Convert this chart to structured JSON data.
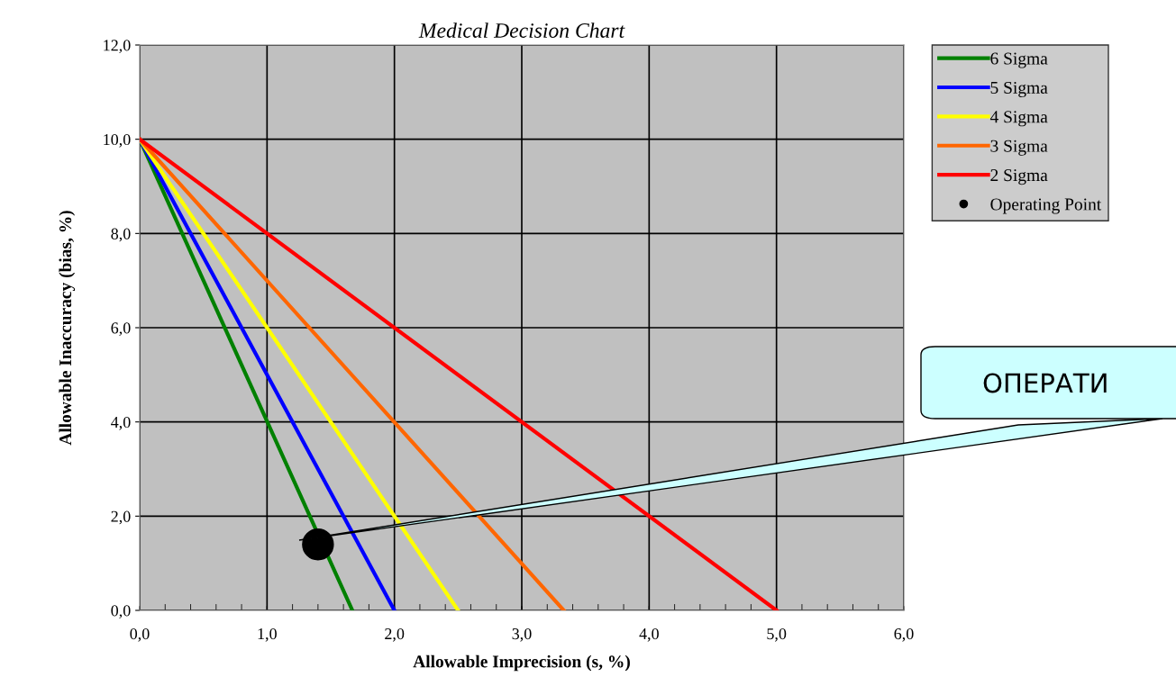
{
  "chart_data": {
    "type": "line",
    "title": "Medical Decision Chart",
    "xlabel": "Allowable Imprecision (s, %)",
    "ylabel": "Allowable Inaccuracy (bias, %)",
    "series": [
      {
        "name": "6 Sigma",
        "color": "#008000",
        "x": [
          0,
          1.67
        ],
        "values": [
          10,
          0
        ]
      },
      {
        "name": "5 Sigma",
        "color": "#0000ff",
        "x": [
          0,
          2
        ],
        "values": [
          10,
          0
        ]
      },
      {
        "name": "4 Sigma",
        "color": "#ffff00",
        "x": [
          0,
          2.5
        ],
        "values": [
          10,
          0
        ]
      },
      {
        "name": "3 Sigma",
        "color": "#ff6600",
        "x": [
          0,
          3.33
        ],
        "values": [
          10,
          0
        ]
      },
      {
        "name": "2 Sigma",
        "color": "#ff0000",
        "x": [
          0,
          5
        ],
        "values": [
          10,
          0
        ]
      },
      {
        "name": "Operating Point",
        "type": "scatter",
        "marker": "circle",
        "color": "#000000",
        "x": [
          1.4
        ],
        "values": [
          1.4
        ]
      }
    ],
    "xlim": [
      0,
      6
    ],
    "xticks": [
      {
        "value": 0,
        "label": "0,0"
      },
      {
        "value": 1,
        "label": "1,0"
      },
      {
        "value": 2,
        "label": "2,0"
      },
      {
        "value": 3,
        "label": "3,0"
      },
      {
        "value": 4,
        "label": "4,0"
      },
      {
        "value": 5,
        "label": "5,0"
      },
      {
        "value": 6,
        "label": "6,0"
      }
    ],
    "ylim": [
      0,
      12
    ],
    "yticks": [
      {
        "value": 0,
        "label": "0,0"
      },
      {
        "value": 2,
        "label": "2,0"
      },
      {
        "value": 4,
        "label": "4,0"
      },
      {
        "value": 6,
        "label": "6,0"
      },
      {
        "value": 8,
        "label": "8,0"
      },
      {
        "value": 10,
        "label": "10,0"
      },
      {
        "value": 12,
        "label": "12,0"
      }
    ],
    "grid": true,
    "legend": "top right",
    "annotations": [
      "ОПЕРАТИ"
    ]
  }
}
